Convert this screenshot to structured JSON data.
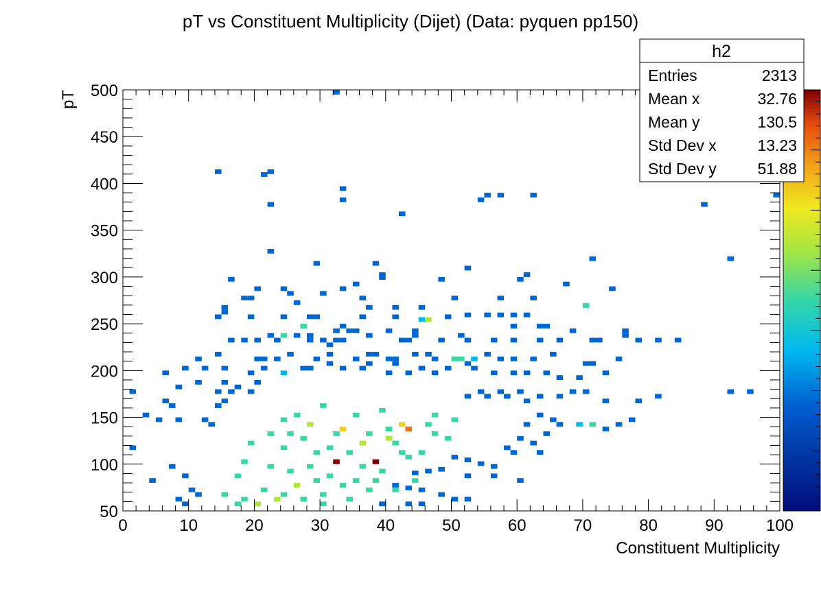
{
  "chart_data": {
    "type": "heatmap",
    "title": "pT vs Constituent Multiplicity (Dijet) (Data: pyquen pp150)",
    "xlabel": "Constituent Multiplicity",
    "ylabel": "pT",
    "xlim": [
      0,
      100
    ],
    "ylim": [
      50,
      500
    ],
    "x_ticks": [
      0,
      10,
      20,
      30,
      40,
      50,
      60,
      70,
      80,
      90,
      100
    ],
    "y_ticks": [
      50,
      100,
      150,
      200,
      250,
      300,
      350,
      400,
      450,
      500
    ],
    "bin_width_x": 1,
    "bin_width_y": 5,
    "colorbar": {
      "min": 0,
      "max": 7,
      "palette": "rainbow"
    },
    "stats_box": {
      "title": "h2",
      "rows": [
        {
          "label": "Entries",
          "value": "2313"
        },
        {
          "label": "Mean x",
          "value": "32.76"
        },
        {
          "label": "Mean y",
          "value": "130.5"
        },
        {
          "label": "Std Dev x",
          "value": "13.23"
        },
        {
          "label": "Std Dev y",
          "value": "51.88"
        }
      ]
    },
    "cells": [
      [
        32,
        495,
        1
      ],
      [
        14,
        410,
        1
      ],
      [
        22,
        410,
        1
      ],
      [
        21,
        407,
        1
      ],
      [
        33,
        392,
        1
      ],
      [
        33,
        380,
        1
      ],
      [
        22,
        375,
        1
      ],
      [
        42,
        365,
        1
      ],
      [
        55,
        385,
        1
      ],
      [
        57,
        385,
        1
      ],
      [
        62,
        385,
        1
      ],
      [
        54,
        380,
        1
      ],
      [
        88,
        375,
        1
      ],
      [
        99,
        385,
        1
      ],
      [
        22,
        325,
        1
      ],
      [
        71,
        317,
        1
      ],
      [
        92,
        317,
        1
      ],
      [
        29,
        312,
        1
      ],
      [
        38,
        312,
        1
      ],
      [
        52,
        307,
        1
      ],
      [
        39,
        300,
        1
      ],
      [
        39,
        297,
        1
      ],
      [
        16,
        295,
        1
      ],
      [
        48,
        295,
        1
      ],
      [
        60,
        295,
        1
      ],
      [
        61,
        300,
        1
      ],
      [
        67,
        290,
        1
      ],
      [
        20,
        285,
        1
      ],
      [
        24,
        285,
        1
      ],
      [
        30,
        280,
        1
      ],
      [
        33,
        285,
        1
      ],
      [
        35,
        290,
        1
      ],
      [
        74,
        285,
        1
      ],
      [
        18,
        275,
        1
      ],
      [
        19,
        275,
        1
      ],
      [
        25,
        280,
        1
      ],
      [
        36,
        275,
        1
      ],
      [
        26,
        270,
        1
      ],
      [
        50,
        275,
        1
      ],
      [
        57,
        275,
        1
      ],
      [
        62,
        275,
        1
      ],
      [
        15,
        265,
        1
      ],
      [
        15,
        260,
        1
      ],
      [
        37,
        265,
        1
      ],
      [
        41,
        265,
        1
      ],
      [
        45,
        265,
        1
      ],
      [
        70,
        267,
        3
      ],
      [
        14,
        255,
        1
      ],
      [
        19,
        255,
        1
      ],
      [
        24,
        255,
        1
      ],
      [
        28,
        255,
        1
      ],
      [
        29,
        255,
        1
      ],
      [
        36,
        255,
        1
      ],
      [
        41,
        255,
        1
      ],
      [
        45,
        252,
        2
      ],
      [
        46,
        252,
        4
      ],
      [
        49,
        255,
        1
      ],
      [
        52,
        257,
        1
      ],
      [
        55,
        257,
        1
      ],
      [
        57,
        257,
        1
      ],
      [
        59,
        257,
        1
      ],
      [
        61,
        257,
        1
      ],
      [
        27,
        245,
        3
      ],
      [
        32,
        240,
        1
      ],
      [
        33,
        245,
        1
      ],
      [
        35,
        240,
        1
      ],
      [
        22,
        235,
        1
      ],
      [
        24,
        235,
        3
      ],
      [
        26,
        235,
        1
      ],
      [
        28,
        235,
        1
      ],
      [
        34,
        240,
        1
      ],
      [
        40,
        240,
        1
      ],
      [
        44,
        240,
        1
      ],
      [
        44,
        235,
        1
      ],
      [
        51,
        235,
        1
      ],
      [
        59,
        245,
        1
      ],
      [
        63,
        245,
        1
      ],
      [
        64,
        245,
        1
      ],
      [
        68,
        240,
        1
      ],
      [
        76,
        240,
        1
      ],
      [
        76,
        235,
        1
      ],
      [
        16,
        230,
        1
      ],
      [
        18,
        230,
        1
      ],
      [
        20,
        230,
        1
      ],
      [
        23,
        230,
        1
      ],
      [
        28,
        230,
        1
      ],
      [
        30,
        230,
        1
      ],
      [
        31,
        225,
        1
      ],
      [
        32,
        230,
        1
      ],
      [
        33,
        230,
        1
      ],
      [
        37,
        235,
        1
      ],
      [
        42,
        230,
        1
      ],
      [
        43,
        230,
        1
      ],
      [
        48,
        230,
        1
      ],
      [
        52,
        230,
        1
      ],
      [
        56,
        230,
        1
      ],
      [
        59,
        230,
        1
      ],
      [
        63,
        230,
        1
      ],
      [
        66,
        230,
        1
      ],
      [
        71,
        230,
        1
      ],
      [
        72,
        230,
        1
      ],
      [
        78,
        230,
        1
      ],
      [
        81,
        230,
        1
      ],
      [
        84,
        230,
        1
      ],
      [
        11,
        210,
        1
      ],
      [
        14,
        215,
        1
      ],
      [
        20,
        210,
        1
      ],
      [
        21,
        210,
        1
      ],
      [
        25,
        215,
        1
      ],
      [
        23,
        210,
        1
      ],
      [
        29,
        210,
        1
      ],
      [
        31,
        215,
        1
      ],
      [
        35,
        210,
        1
      ],
      [
        37,
        215,
        1
      ],
      [
        38,
        215,
        1
      ],
      [
        40,
        210,
        1
      ],
      [
        41,
        210,
        1
      ],
      [
        44,
        215,
        1
      ],
      [
        46,
        215,
        1
      ],
      [
        47,
        210,
        1
      ],
      [
        50,
        210,
        3
      ],
      [
        51,
        210,
        3
      ],
      [
        53,
        210,
        2
      ],
      [
        55,
        215,
        1
      ],
      [
        57,
        210,
        1
      ],
      [
        59,
        210,
        1
      ],
      [
        62,
        210,
        1
      ],
      [
        65,
        215,
        1
      ],
      [
        70,
        205,
        1
      ],
      [
        71,
        205,
        1
      ],
      [
        75,
        210,
        1
      ],
      [
        6,
        195,
        1
      ],
      [
        9,
        200,
        1
      ],
      [
        12,
        200,
        1
      ],
      [
        15,
        200,
        1
      ],
      [
        19,
        195,
        1
      ],
      [
        21,
        200,
        1
      ],
      [
        24,
        195,
        2
      ],
      [
        27,
        200,
        1
      ],
      [
        28,
        200,
        1
      ],
      [
        31,
        205,
        1
      ],
      [
        33,
        200,
        1
      ],
      [
        36,
        200,
        1
      ],
      [
        37,
        205,
        1
      ],
      [
        40,
        195,
        1
      ],
      [
        41,
        205,
        1
      ],
      [
        43,
        195,
        1
      ],
      [
        45,
        200,
        1
      ],
      [
        47,
        195,
        1
      ],
      [
        49,
        200,
        1
      ],
      [
        52,
        205,
        1
      ],
      [
        53,
        200,
        1
      ],
      [
        56,
        195,
        1
      ],
      [
        59,
        195,
        1
      ],
      [
        61,
        195,
        1
      ],
      [
        64,
        195,
        1
      ],
      [
        66,
        190,
        1
      ],
      [
        69,
        190,
        1
      ],
      [
        73,
        195,
        1
      ],
      [
        95,
        175,
        1
      ],
      [
        92,
        175,
        1
      ],
      [
        81,
        170,
        1
      ],
      [
        78,
        165,
        1
      ],
      [
        73,
        165,
        1
      ],
      [
        70,
        175,
        1
      ],
      [
        68,
        175,
        1
      ],
      [
        66,
        170,
        1
      ],
      [
        63,
        170,
        1
      ],
      [
        61,
        165,
        1
      ],
      [
        60,
        175,
        1
      ],
      [
        58,
        170,
        1
      ],
      [
        57,
        175,
        1
      ],
      [
        55,
        170,
        1
      ],
      [
        54,
        175,
        1
      ],
      [
        52,
        170,
        1
      ],
      [
        1,
        175,
        1
      ],
      [
        8,
        180,
        1
      ],
      [
        11,
        185,
        1
      ],
      [
        6,
        165,
        1
      ],
      [
        7,
        160,
        1
      ],
      [
        3,
        150,
        1
      ],
      [
        5,
        145,
        1
      ],
      [
        8,
        145,
        1
      ],
      [
        14,
        175,
        1
      ],
      [
        15,
        185,
        1
      ],
      [
        16,
        175,
        1
      ],
      [
        17,
        180,
        1
      ],
      [
        19,
        175,
        1
      ],
      [
        20,
        185,
        1
      ],
      [
        14,
        160,
        1
      ],
      [
        15,
        165,
        1
      ],
      [
        12,
        145,
        1
      ],
      [
        13,
        140,
        1
      ],
      [
        63,
        150,
        1
      ],
      [
        65,
        145,
        1
      ],
      [
        61,
        140,
        1
      ],
      [
        66,
        140,
        1
      ],
      [
        69,
        140,
        2
      ],
      [
        71,
        140,
        3
      ],
      [
        73,
        135,
        1
      ],
      [
        75,
        140,
        1
      ],
      [
        77,
        145,
        1
      ],
      [
        64,
        130,
        1
      ],
      [
        60,
        125,
        1
      ],
      [
        62,
        120,
        1
      ],
      [
        58,
        115,
        1
      ],
      [
        59,
        110,
        1
      ],
      [
        63,
        110,
        1
      ],
      [
        50,
        105,
        1
      ],
      [
        52,
        102,
        1
      ],
      [
        54,
        98,
        1
      ],
      [
        56,
        95,
        1
      ],
      [
        46,
        90,
        1
      ],
      [
        48,
        92,
        1
      ],
      [
        44,
        88,
        1
      ],
      [
        52,
        85,
        1
      ],
      [
        60,
        80,
        1
      ],
      [
        56,
        85,
        1
      ],
      [
        41,
        75,
        1
      ],
      [
        43,
        72,
        1
      ],
      [
        45,
        70,
        1
      ],
      [
        48,
        65,
        1
      ],
      [
        50,
        60,
        1
      ],
      [
        52,
        60,
        1
      ],
      [
        1,
        115,
        1
      ],
      [
        4,
        80,
        1
      ],
      [
        7,
        95,
        1
      ],
      [
        9,
        85,
        1
      ],
      [
        10,
        70,
        1
      ],
      [
        11,
        65,
        1
      ],
      [
        8,
        60,
        1
      ],
      [
        9,
        55,
        1
      ],
      [
        43,
        55,
        1
      ],
      [
        45,
        55,
        1
      ],
      [
        39,
        55,
        1
      ],
      [
        33,
        135,
        5
      ],
      [
        42,
        140,
        5
      ],
      [
        43,
        135,
        6
      ],
      [
        28,
        140,
        4
      ],
      [
        32,
        100,
        7
      ],
      [
        38,
        100,
        7
      ],
      [
        36,
        120,
        4
      ],
      [
        40,
        125,
        4
      ],
      [
        26,
        75,
        4
      ],
      [
        23,
        60,
        4
      ],
      [
        20,
        55,
        4
      ],
      [
        18,
        60,
        3
      ],
      [
        27,
        60,
        3
      ],
      [
        30,
        65,
        3
      ],
      [
        34,
        60,
        3
      ],
      [
        25,
        90,
        3
      ],
      [
        31,
        85,
        3
      ],
      [
        29,
        110,
        3
      ],
      [
        37,
        130,
        3
      ],
      [
        41,
        120,
        3
      ],
      [
        45,
        110,
        3
      ],
      [
        22,
        130,
        3
      ],
      [
        24,
        145,
        3
      ],
      [
        26,
        150,
        3
      ],
      [
        30,
        160,
        3
      ],
      [
        35,
        150,
        3
      ],
      [
        39,
        155,
        3
      ],
      [
        47,
        150,
        3
      ],
      [
        47,
        130,
        3
      ],
      [
        49,
        125,
        3
      ],
      [
        24,
        115,
        3
      ],
      [
        18,
        100,
        3
      ],
      [
        17,
        85,
        3
      ],
      [
        28,
        95,
        3
      ],
      [
        39,
        90,
        3
      ],
      [
        44,
        80,
        3
      ],
      [
        35,
        80,
        3
      ],
      [
        15,
        65,
        3
      ],
      [
        21,
        70,
        3
      ],
      [
        33,
        75,
        3
      ],
      [
        37,
        70,
        3
      ],
      [
        31,
        115,
        3
      ],
      [
        27,
        125,
        3
      ],
      [
        34,
        110,
        3
      ],
      [
        42,
        110,
        3
      ],
      [
        19,
        120,
        3
      ],
      [
        46,
        140,
        3
      ],
      [
        50,
        145,
        3
      ],
      [
        36,
        95,
        3
      ],
      [
        38,
        80,
        3
      ],
      [
        41,
        70,
        3
      ],
      [
        25,
        130,
        3
      ],
      [
        43,
        105,
        3
      ],
      [
        30,
        55,
        3
      ],
      [
        17,
        55,
        3
      ],
      [
        24,
        65,
        3
      ],
      [
        32,
        130,
        3
      ],
      [
        40,
        135,
        3
      ],
      [
        22,
        95,
        3
      ],
      [
        29,
        80,
        3
      ]
    ]
  }
}
